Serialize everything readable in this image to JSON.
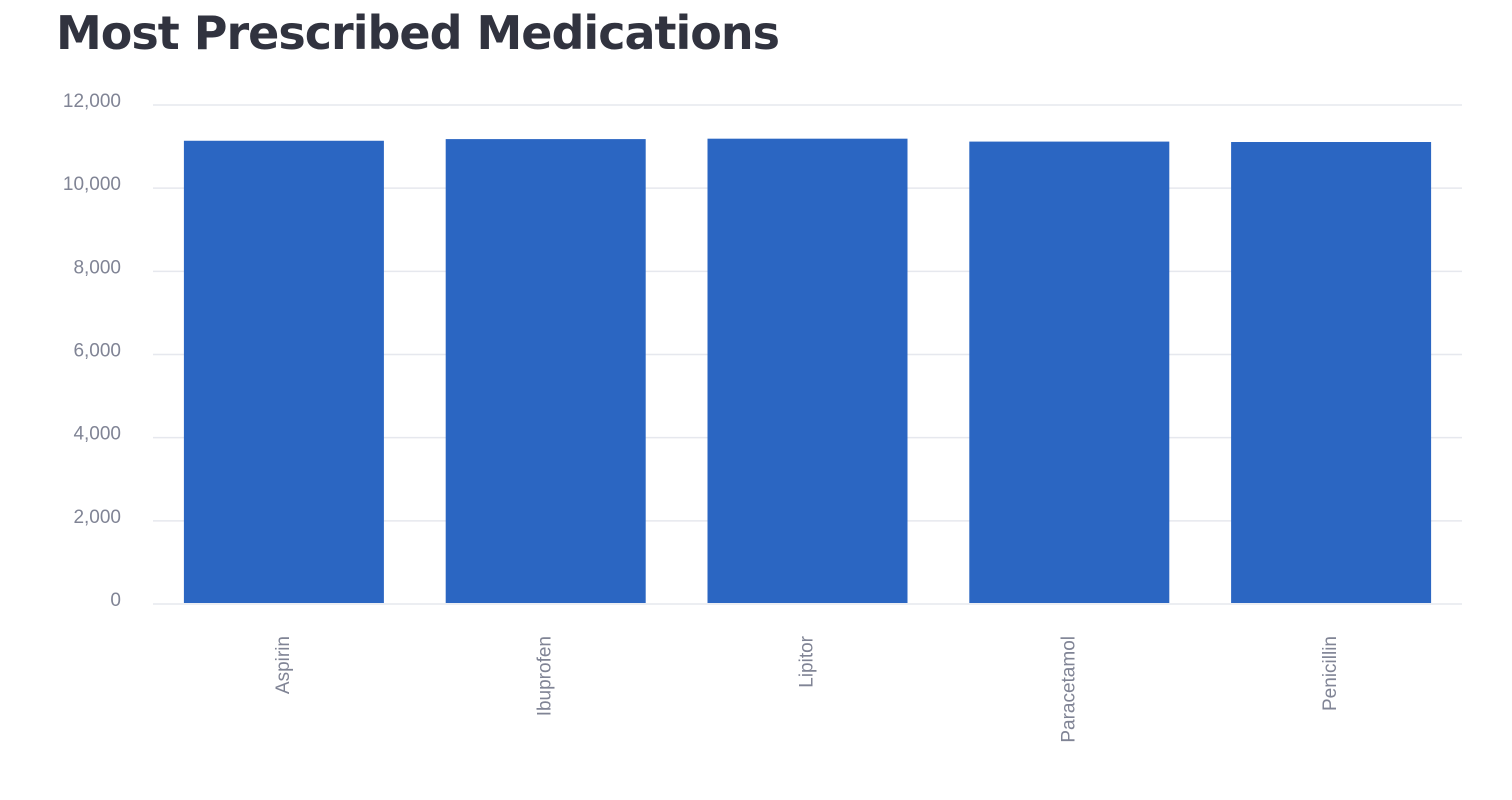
{
  "chart_data": {
    "type": "bar",
    "title": "Most Prescribed Medications",
    "categories": [
      "Aspirin",
      "Ibuprofen",
      "Lipitor",
      "Paracetamol",
      "Penicillin"
    ],
    "values": [
      11140,
      11180,
      11190,
      11120,
      11110
    ],
    "y_ticks": [
      0,
      2000,
      4000,
      6000,
      8000,
      10000,
      12000
    ],
    "y_tick_labels": [
      "0",
      "2,000",
      "4,000",
      "6,000",
      "8,000",
      "10,000",
      "12,000"
    ],
    "ylim": [
      0,
      12000
    ],
    "xlabel": "",
    "ylabel": "",
    "grid": true,
    "legend": "none",
    "bar_color": "#2b66c2",
    "grid_color": "#e6e8ee",
    "label_color": "#808495",
    "title_color": "#31333f"
  }
}
